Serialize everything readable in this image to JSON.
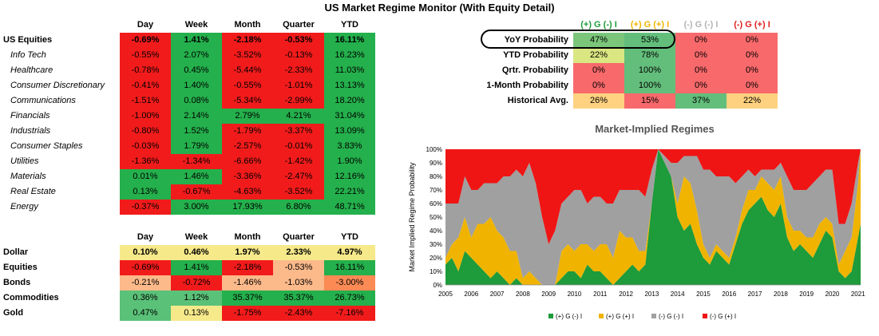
{
  "title": "US Market Regime Monitor (With Equity Detail)",
  "equity_table": {
    "columns": [
      "Day",
      "Week",
      "Month",
      "Quarter",
      "YTD"
    ],
    "rows": [
      {
        "label": "US Equities",
        "bold": true,
        "values": [
          "-0.69%",
          "1.41%",
          "-2.18%",
          "-0.53%",
          "16.11%"
        ]
      },
      {
        "label": "Info Tech",
        "values": [
          "-0.55%",
          "2.07%",
          "-3.52%",
          "-0.13%",
          "16.23%"
        ]
      },
      {
        "label": "Healthcare",
        "values": [
          "-0.78%",
          "0.45%",
          "-5.44%",
          "-2.33%",
          "11.03%"
        ]
      },
      {
        "label": "Consumer Discretionary",
        "values": [
          "-0.41%",
          "1.40%",
          "-0.55%",
          "-1.01%",
          "13.13%"
        ]
      },
      {
        "label": "Communications",
        "values": [
          "-1.51%",
          "0.08%",
          "-5.34%",
          "-2.99%",
          "18.20%"
        ]
      },
      {
        "label": "Financials",
        "values": [
          "-1.00%",
          "2.14%",
          "2.79%",
          "4.21%",
          "31.04%"
        ]
      },
      {
        "label": "Industrials",
        "values": [
          "-0.80%",
          "1.52%",
          "-1.79%",
          "-3.37%",
          "13.09%"
        ]
      },
      {
        "label": "Consumer Staples",
        "values": [
          "-0.03%",
          "1.79%",
          "-2.57%",
          "-0.01%",
          "3.83%"
        ]
      },
      {
        "label": "Utilities",
        "values": [
          "-1.36%",
          "-1.34%",
          "-6.66%",
          "-1.42%",
          "1.90%"
        ]
      },
      {
        "label": "Materials",
        "values": [
          "0.01%",
          "1.46%",
          "-3.36%",
          "-2.47%",
          "12.16%"
        ]
      },
      {
        "label": "Real Estate",
        "values": [
          "0.13%",
          "-0.67%",
          "-4.63%",
          "-3.52%",
          "22.21%"
        ]
      },
      {
        "label": "Energy",
        "values": [
          "-0.37%",
          "3.00%",
          "17.93%",
          "6.80%",
          "48.71%"
        ]
      }
    ]
  },
  "macro_table": {
    "columns": [
      "Day",
      "Week",
      "Month",
      "Quarter",
      "YTD"
    ],
    "rows": [
      {
        "label": "Dollar",
        "values": [
          "0.10%",
          "0.46%",
          "1.97%",
          "2.33%",
          "4.97%"
        ],
        "colors": [
          "#f6e98a",
          "#f6e98a",
          "#f6e98a",
          "#f6e98a",
          "#f6e98a"
        ]
      },
      {
        "label": "Equities",
        "values": [
          "-0.69%",
          "1.41%",
          "-2.18%",
          "-0.53%",
          "16.11%"
        ],
        "colors": [
          "#f21b1b",
          "#24b04c",
          "#f21b1b",
          "#fcb98a",
          "#24b04c"
        ]
      },
      {
        "label": "Bonds",
        "values": [
          "-0.21%",
          "-0.72%",
          "-1.46%",
          "-1.03%",
          "-3.00%"
        ],
        "colors": [
          "#fcb98a",
          "#f21b1b",
          "#fcb98a",
          "#fcb98a",
          "#fb8a55"
        ]
      },
      {
        "label": "Commodities",
        "values": [
          "0.36%",
          "1.12%",
          "35.37%",
          "35.37%",
          "26.73%"
        ],
        "colors": [
          "#5ac178",
          "#5ac178",
          "#24b04c",
          "#24b04c",
          "#24b04c"
        ]
      },
      {
        "label": "Gold",
        "values": [
          "0.47%",
          "0.13%",
          "-1.75%",
          "-2.43%",
          "-7.16%"
        ],
        "colors": [
          "#5ac178",
          "#f6e98a",
          "#f21b1b",
          "#f21b1b",
          "#f21b1b"
        ]
      }
    ]
  },
  "prob_table": {
    "columns": [
      {
        "label": "(+) G (-) I",
        "color": "#1e9b3a"
      },
      {
        "label": "(+) G (+) I",
        "color": "#f0b400"
      },
      {
        "label": "(-) G (-) I",
        "color": "#b4b4b4"
      },
      {
        "label": "(-) G (+) I",
        "color": "#e01e1e"
      }
    ],
    "rows": [
      {
        "label": "YoY Probability",
        "values": [
          "47%",
          "53%",
          "0%",
          "0%"
        ],
        "colors": [
          "#7bc67a",
          "#63be7b",
          "#f8696b",
          "#f8696b"
        ]
      },
      {
        "label": "YTD Probability",
        "values": [
          "22%",
          "78%",
          "0%",
          "0%"
        ],
        "colors": [
          "#d9e681",
          "#63be7b",
          "#f8696b",
          "#f8696b"
        ]
      },
      {
        "label": "Qrtr. Probability",
        "values": [
          "0%",
          "100%",
          "0%",
          "0%"
        ],
        "colors": [
          "#f8696b",
          "#63be7b",
          "#f8696b",
          "#f8696b"
        ]
      },
      {
        "label": "1-Month Probability",
        "values": [
          "0%",
          "100%",
          "0%",
          "0%"
        ],
        "colors": [
          "#f8696b",
          "#63be7b",
          "#f8696b",
          "#f8696b"
        ]
      },
      {
        "label": "Historical Avg.",
        "values": [
          "26%",
          "15%",
          "37%",
          "22%"
        ],
        "colors": [
          "#fed280",
          "#f8696b",
          "#63be7b",
          "#fdd17f"
        ]
      }
    ]
  },
  "chart_data": {
    "type": "area",
    "title": "Market-Implied Regimes",
    "ylabel": "Market Implied Regime Probability",
    "xlabel": "",
    "x_ticks": [
      "2005",
      "2006",
      "2007",
      "2008",
      "2009",
      "2010",
      "2011",
      "2012",
      "2013",
      "2014",
      "2015",
      "2016",
      "2017",
      "2018",
      "2019",
      "2020",
      "2021"
    ],
    "y_ticks": [
      "0%",
      "10%",
      "20%",
      "30%",
      "40%",
      "50%",
      "60%",
      "70%",
      "80%",
      "90%",
      "100%"
    ],
    "ylim": [
      0,
      100
    ],
    "legend_position": "bottom",
    "x": [
      2005.0,
      2005.25,
      2005.5,
      2005.75,
      2006.0,
      2006.25,
      2006.5,
      2006.75,
      2007.0,
      2007.25,
      2007.5,
      2007.75,
      2008.0,
      2008.25,
      2008.5,
      2008.75,
      2009.0,
      2009.25,
      2009.5,
      2009.75,
      2010.0,
      2010.25,
      2010.5,
      2010.75,
      2011.0,
      2011.25,
      2011.5,
      2011.75,
      2012.0,
      2012.25,
      2012.5,
      2012.75,
      2013.0,
      2013.25,
      2013.5,
      2013.75,
      2014.0,
      2014.25,
      2014.5,
      2014.75,
      2015.0,
      2015.25,
      2015.5,
      2015.75,
      2016.0,
      2016.25,
      2016.5,
      2016.75,
      2017.0,
      2017.25,
      2017.5,
      2017.75,
      2018.0,
      2018.25,
      2018.5,
      2018.75,
      2019.0,
      2019.25,
      2019.5,
      2019.75,
      2020.0,
      2020.25,
      2020.5,
      2020.75,
      2021.0,
      2021.1
    ],
    "series": [
      {
        "name": "(+) G (-) I",
        "color": "#1e9b3a",
        "values": [
          15,
          20,
          10,
          25,
          20,
          15,
          10,
          5,
          10,
          5,
          0,
          5,
          0,
          0,
          0,
          0,
          0,
          0,
          5,
          10,
          10,
          5,
          15,
          10,
          10,
          5,
          0,
          5,
          10,
          15,
          10,
          15,
          60,
          100,
          90,
          80,
          50,
          40,
          45,
          30,
          20,
          15,
          25,
          20,
          15,
          30,
          45,
          55,
          60,
          65,
          55,
          50,
          60,
          35,
          25,
          30,
          25,
          20,
          30,
          40,
          35,
          10,
          5,
          10,
          35,
          45
        ]
      },
      {
        "name": "(+) G (+) I",
        "color": "#f0b400",
        "values": [
          5,
          10,
          25,
          25,
          15,
          30,
          35,
          45,
          30,
          30,
          25,
          20,
          5,
          10,
          5,
          0,
          0,
          0,
          20,
          20,
          15,
          25,
          15,
          15,
          20,
          25,
          20,
          35,
          25,
          20,
          15,
          10,
          0,
          0,
          0,
          0,
          10,
          40,
          30,
          25,
          10,
          5,
          5,
          5,
          5,
          5,
          10,
          15,
          10,
          15,
          20,
          20,
          20,
          15,
          15,
          10,
          10,
          15,
          15,
          10,
          10,
          5,
          20,
          25,
          40,
          55
        ]
      },
      {
        "name": "(-) G (-) I",
        "color": "#a0a0a0",
        "values": [
          40,
          30,
          25,
          30,
          35,
          25,
          30,
          25,
          35,
          45,
          55,
          60,
          75,
          80,
          70,
          50,
          30,
          40,
          35,
          35,
          45,
          40,
          30,
          40,
          35,
          30,
          40,
          30,
          35,
          35,
          45,
          40,
          25,
          0,
          5,
          10,
          30,
          15,
          20,
          40,
          55,
          65,
          50,
          55,
          60,
          40,
          25,
          15,
          10,
          5,
          10,
          15,
          10,
          30,
          30,
          30,
          35,
          40,
          35,
          35,
          40,
          30,
          20,
          25,
          15,
          0
        ]
      },
      {
        "name": "(-) G (+) I",
        "color": "#ef1515",
        "values": [
          40,
          40,
          40,
          20,
          30,
          30,
          25,
          25,
          25,
          20,
          20,
          15,
          20,
          10,
          25,
          50,
          70,
          60,
          40,
          35,
          30,
          30,
          40,
          35,
          35,
          40,
          40,
          30,
          30,
          30,
          30,
          35,
          15,
          0,
          5,
          10,
          10,
          5,
          5,
          5,
          15,
          15,
          20,
          20,
          20,
          25,
          20,
          15,
          20,
          15,
          15,
          15,
          10,
          20,
          30,
          30,
          30,
          25,
          20,
          15,
          15,
          55,
          55,
          40,
          10,
          0
        ]
      }
    ]
  }
}
